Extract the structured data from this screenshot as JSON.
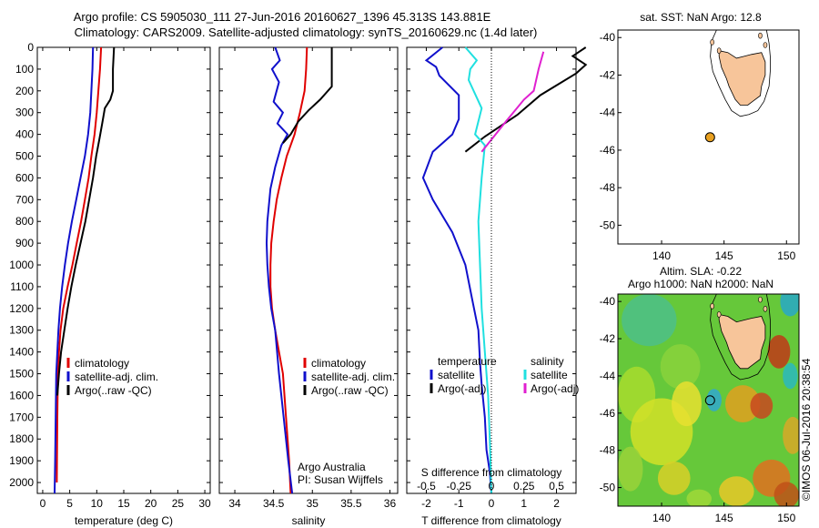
{
  "header": {
    "line1": "Argo profile: CS 5905030_111 27-Jun-2016 20160627_1396 45.313S 143.881E",
    "line2": "Climatology: CARS2009. Satellite-adjusted climatology: synTS_20160629.nc (1.4d later)"
  },
  "colors": {
    "climatology": "#e00000",
    "satellite": "#1010cc",
    "argo": "#000000",
    "satellite_salinity": "#20e0e0",
    "argo_salinity": "#e020d0",
    "land": "#f7c59a",
    "float_marker": "#e8a020"
  },
  "chart_data": [
    {
      "type": "line",
      "id": "temperature",
      "xlabel": "temperature (deg C)",
      "xlim": [
        -1,
        31
      ],
      "xticks": [
        0,
        5,
        10,
        15,
        20,
        25,
        30
      ],
      "ylim": [
        0,
        2050
      ],
      "yticks": [
        0,
        100,
        200,
        300,
        400,
        500,
        600,
        700,
        800,
        900,
        1000,
        1100,
        1200,
        1300,
        1400,
        1500,
        1600,
        1700,
        1800,
        1900,
        2000
      ],
      "yreversed": true,
      "legend": [
        "climatology",
        "satellite-adj. clim.",
        "Argo(..raw -QC)"
      ],
      "series": [
        {
          "name": "climatology",
          "color": "#e00000",
          "x": [
            10.8,
            10.6,
            10.3,
            10.0,
            9.6,
            9.0,
            8.5,
            7.8,
            7.1,
            6.3,
            5.5,
            4.6,
            3.8,
            3.3,
            3.0,
            2.8,
            2.7,
            2.6
          ],
          "y": [
            0,
            100,
            200,
            300,
            400,
            500,
            600,
            700,
            800,
            900,
            1000,
            1100,
            1200,
            1300,
            1400,
            1500,
            1700,
            2000
          ]
        },
        {
          "name": "satellite-adj. clim.",
          "color": "#1010cc",
          "x": [
            9.3,
            9.2,
            9.0,
            8.8,
            8.4,
            7.8,
            7.0,
            6.2,
            5.4,
            4.7,
            4.1,
            3.6,
            3.2,
            2.9,
            2.7,
            2.5,
            2.4,
            2.3,
            2.2
          ],
          "y": [
            0,
            100,
            200,
            300,
            400,
            500,
            600,
            700,
            800,
            900,
            1000,
            1100,
            1200,
            1300,
            1400,
            1500,
            1700,
            1900,
            2050
          ]
        },
        {
          "name": "Argo(..raw -QC)",
          "color": "#000000",
          "x": [
            13.2,
            13.0,
            13.0,
            12.5,
            11.5,
            11.0,
            10.5,
            9.9,
            9.3,
            8.6,
            7.9,
            7.0,
            6.1,
            5.3,
            4.6,
            4.0,
            3.4,
            3.0,
            2.7
          ],
          "y": [
            0,
            100,
            200,
            240,
            280,
            350,
            420,
            500,
            600,
            700,
            800,
            900,
            1000,
            1100,
            1200,
            1300,
            1400,
            1500,
            1600
          ]
        }
      ]
    },
    {
      "type": "line",
      "id": "salinity",
      "xlabel": "salinity",
      "xlim": [
        33.8,
        36.1
      ],
      "xticks": [
        34,
        34.5,
        35,
        35.5,
        36
      ],
      "ylim": [
        0,
        2050
      ],
      "yreversed": true,
      "legend": [
        "climatology",
        "satellite-adj. clim.",
        "Argo(..raw -QC)"
      ],
      "annotation": [
        "Argo Australia",
        "PI: Susan Wijffels"
      ],
      "series": [
        {
          "name": "climatology",
          "color": "#e00000",
          "x": [
            34.93,
            34.92,
            34.9,
            34.84,
            34.77,
            34.67,
            34.6,
            34.54,
            34.5,
            34.47,
            34.46,
            34.46,
            34.48,
            34.52,
            34.57,
            34.62,
            34.66,
            34.7,
            34.72
          ],
          "y": [
            0,
            100,
            200,
            300,
            400,
            500,
            600,
            700,
            800,
            900,
            1000,
            1100,
            1200,
            1300,
            1400,
            1500,
            1700,
            1900,
            2050
          ]
        },
        {
          "name": "satellite-adj. clim.",
          "color": "#1010cc",
          "x": [
            34.52,
            34.58,
            34.48,
            34.57,
            34.5,
            34.62,
            34.55,
            34.68,
            34.6,
            34.52,
            34.46,
            34.42,
            34.41,
            34.42,
            34.44,
            34.47,
            34.52,
            34.57,
            34.63,
            34.69,
            34.74
          ],
          "y": [
            0,
            60,
            100,
            160,
            250,
            300,
            350,
            400,
            450,
            550,
            650,
            800,
            900,
            1000,
            1100,
            1200,
            1300,
            1500,
            1700,
            1900,
            2050
          ]
        },
        {
          "name": "Argo(..raw -QC)",
          "color": "#000000",
          "x": [
            35.25,
            35.25,
            35.1,
            34.95,
            34.82,
            34.72,
            34.62
          ],
          "y": [
            0,
            180,
            240,
            290,
            340,
            400,
            440
          ]
        }
      ]
    },
    {
      "type": "line",
      "id": "difference",
      "xlabel": "T difference from climatology",
      "xlabel_top": "S difference from climatology",
      "xlim": [
        -2.6,
        2.6
      ],
      "xticks": [
        -2,
        -1,
        0,
        1,
        2
      ],
      "xticks_top": [
        -0.5,
        -0.25,
        0,
        0.25,
        0.5
      ],
      "xticks_top_labels": [
        "-0.5",
        "-0.25",
        "0",
        "0.25",
        "0.5"
      ],
      "ylim": [
        0,
        2050
      ],
      "yreversed": true,
      "legend_headers": [
        "temperature",
        "salinity"
      ],
      "legend_left": [
        "satellite",
        "Argo(-adj)"
      ],
      "legend_right": [
        "satellite",
        "Argo(-adj)"
      ],
      "series": [
        {
          "name": "T satellite",
          "color": "#1010cc",
          "x": [
            -1.5,
            -2.0,
            -1.7,
            -1.6,
            -1.0,
            -1.0,
            -1.2,
            -1.8,
            -2.1,
            -1.8,
            -1.2,
            -0.8,
            -0.6,
            -0.4,
            -0.35,
            -0.3,
            -0.2,
            -0.15,
            -0.05,
            0.0
          ],
          "y": [
            0,
            60,
            90,
            130,
            220,
            330,
            400,
            480,
            600,
            700,
            850,
            1000,
            1150,
            1300,
            1450,
            1550,
            1700,
            1850,
            1950,
            2050
          ]
        },
        {
          "name": "T Argo(-adj)",
          "color": "#000000",
          "x": [
            2.9,
            2.5,
            2.9,
            2.6,
            1.5,
            0.8,
            -0.2,
            -0.8
          ],
          "y": [
            0,
            40,
            80,
            120,
            220,
            310,
            410,
            480
          ]
        },
        {
          "name": "S satellite",
          "color": "#20e0e0",
          "x": [
            -0.8,
            -0.45,
            -0.65,
            -0.7,
            -0.3,
            -0.4,
            -0.5,
            -0.2,
            -0.3,
            -0.4,
            -0.35,
            -0.3,
            -0.2,
            -0.1,
            -0.05,
            0.0
          ],
          "y": [
            0,
            60,
            100,
            150,
            280,
            340,
            400,
            450,
            600,
            800,
            1000,
            1200,
            1400,
            1600,
            1800,
            2050
          ]
        },
        {
          "name": "S Argo(-adj)",
          "color": "#e020d0",
          "x": [
            1.6,
            1.45,
            1.3,
            1.0,
            0.45,
            -0.3
          ],
          "y": [
            20,
            100,
            200,
            240,
            340,
            480
          ]
        }
      ]
    },
    {
      "type": "scatter",
      "id": "sst_map",
      "title": "sat. SST: NaN Argo: 12.8",
      "xlim": [
        136.5,
        151
      ],
      "ylim": [
        -51,
        -39.6
      ],
      "xticks": [
        140,
        145,
        150
      ],
      "yticks": [
        -40,
        -42,
        -44,
        -46,
        -48,
        -50
      ],
      "points": [
        {
          "x": 143.881,
          "y": -45.313
        }
      ]
    },
    {
      "type": "heatmap",
      "id": "sla_map",
      "title_line1": "Altim. SLA: -0.22",
      "title_line2": "Argo h1000: NaN h2000: NaN",
      "xlim": [
        136.5,
        151
      ],
      "ylim": [
        -51,
        -39.6
      ],
      "xticks": [
        140,
        145,
        150
      ],
      "yticks": [
        -40,
        -42,
        -44,
        -46,
        -48,
        -50
      ],
      "points": [
        {
          "x": 143.881,
          "y": -45.313
        }
      ]
    }
  ],
  "footer": {
    "credit": "©IMOS 06-Jul-2016 20:38:54"
  }
}
